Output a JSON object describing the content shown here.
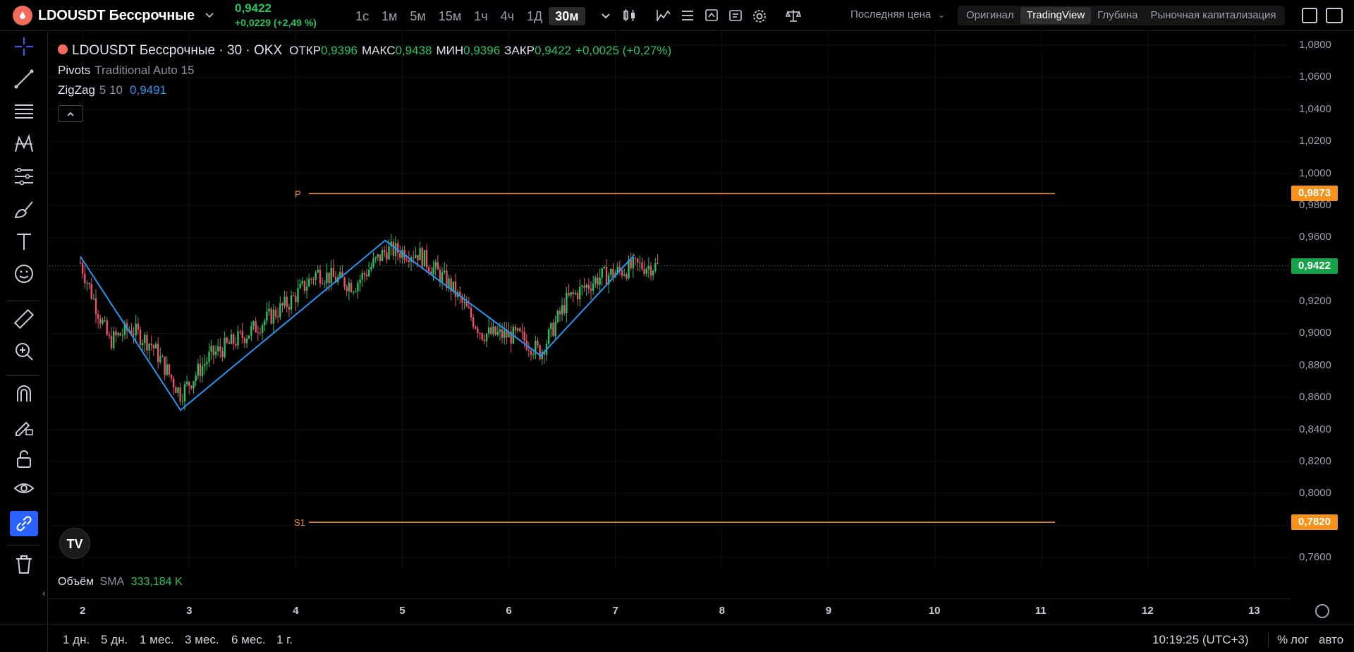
{
  "header": {
    "symbol": "LDOUSDT Бессрочные",
    "price": "0,9422",
    "change": "+0,0229 (+2,49 %)",
    "timeframes": [
      "1с",
      "1м",
      "5м",
      "15м",
      "1ч",
      "4ч",
      "1Д",
      "30м"
    ],
    "active_timeframe": "30м",
    "last_price_label": "Последняя цена",
    "views": [
      "Оригинал",
      "TradingView",
      "Глубина",
      "Рыночная капитализация"
    ],
    "active_view": "TradingView"
  },
  "legend": {
    "title": "LDOUSDT Бессрочные · 30 · OKX",
    "open_label": "ОТКР",
    "open": "0,9396",
    "high_label": "МАКС",
    "high": "0,9438",
    "low_label": "МИН",
    "low": "0,9396",
    "close_label": "ЗАКР",
    "close": "0,9422",
    "change": "+0,0025 (+0,27%)",
    "pivots_name": "Pivots",
    "pivots_params": "Traditional Auto 15",
    "zigzag_name": "ZigZag",
    "zigzag_params": "5 10",
    "zigzag_value": "0,9491"
  },
  "pivots": {
    "p_label": "P",
    "p_value": "0,9873",
    "p_price": 0.9873,
    "s1_label": "S1",
    "s1_value": "0,7820",
    "s1_price": 0.782,
    "color": "#f7931a"
  },
  "current_price_badge": "0,9422",
  "y_ticks": [
    "1,0800",
    "1,0600",
    "1,0400",
    "1,0200",
    "1,0000",
    "0,9800",
    "0,9600",
    "0,9400",
    "0,9200",
    "0,9000",
    "0,8800",
    "0,8600",
    "0,8400",
    "0,8200",
    "0,8000",
    "0,7800",
    "0,7600"
  ],
  "x_ticks": [
    "2",
    "3",
    "4",
    "5",
    "6",
    "7",
    "8",
    "9",
    "10",
    "11",
    "12",
    "13"
  ],
  "volume": {
    "label": "Объём",
    "ma": "SMA",
    "value": "333,184 K"
  },
  "ranges": [
    "1 дн.",
    "5 дн.",
    "1 мес.",
    "3 мес.",
    "6 мес.",
    "1 г."
  ],
  "footer": {
    "time": "10:19:25 (UTC+3)",
    "percent": "%",
    "log": "лог",
    "auto": "авто"
  },
  "tv_logo": "TV",
  "chart_data": {
    "type": "line",
    "description_series": [
      {
        "name": "ZigZag",
        "color": "#2196f3",
        "points": [
          {
            "day": 1.98,
            "price": 0.948
          },
          {
            "day": 2.92,
            "price": 0.852
          },
          {
            "day": 4.84,
            "price": 0.958
          },
          {
            "day": 6.3,
            "price": 0.886
          },
          {
            "day": 7.18,
            "price": 0.949
          }
        ]
      }
    ],
    "candles_envelope": [
      {
        "day": 1.98,
        "price": 0.944
      },
      {
        "day": 2.1,
        "price": 0.922
      },
      {
        "day": 2.25,
        "price": 0.895
      },
      {
        "day": 2.45,
        "price": 0.903
      },
      {
        "day": 2.65,
        "price": 0.893
      },
      {
        "day": 2.92,
        "price": 0.862
      },
      {
        "day": 3.2,
        "price": 0.886
      },
      {
        "day": 3.55,
        "price": 0.9
      },
      {
        "day": 3.95,
        "price": 0.92
      },
      {
        "day": 4.2,
        "price": 0.938
      },
      {
        "day": 4.55,
        "price": 0.93
      },
      {
        "day": 4.85,
        "price": 0.952
      },
      {
        "day": 5.15,
        "price": 0.95
      },
      {
        "day": 5.45,
        "price": 0.93
      },
      {
        "day": 5.75,
        "price": 0.9
      },
      {
        "day": 6.1,
        "price": 0.898
      },
      {
        "day": 6.3,
        "price": 0.888
      },
      {
        "day": 6.55,
        "price": 0.921
      },
      {
        "day": 6.85,
        "price": 0.935
      },
      {
        "day": 7.2,
        "price": 0.942
      },
      {
        "day": 7.4,
        "price": 0.942
      }
    ],
    "ylim": [
      0.76,
      1.08
    ],
    "xlim": [
      1.7,
      13.5
    ]
  }
}
